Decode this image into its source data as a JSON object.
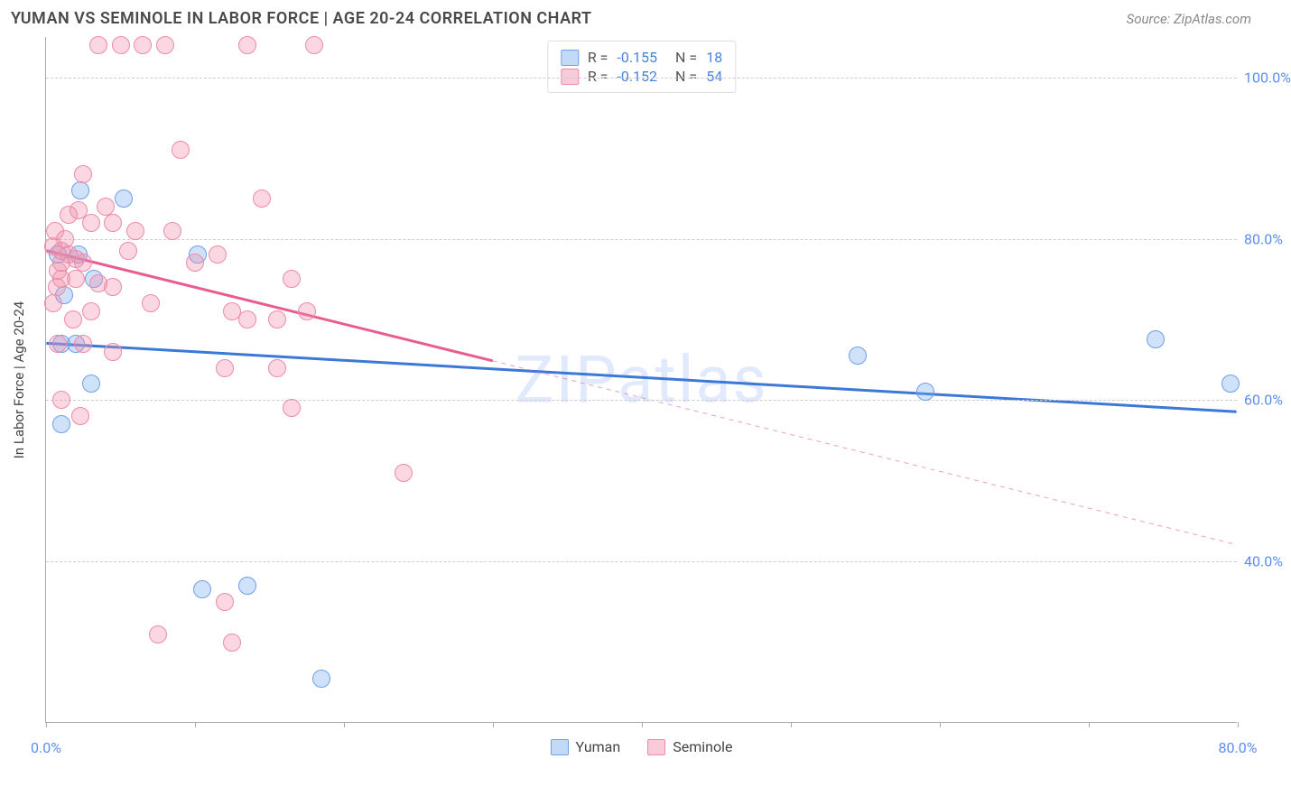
{
  "header": {
    "title": "YUMAN VS SEMINOLE IN LABOR FORCE | AGE 20-24 CORRELATION CHART",
    "source": "Source: ZipAtlas.com"
  },
  "watermark": "ZIPatlas",
  "chart": {
    "type": "scatter",
    "yaxis_label": "In Labor Force | Age 20-24",
    "xlim": [
      0,
      80
    ],
    "ylim": [
      20,
      105
    ],
    "y_gridlines": [
      40,
      60,
      80,
      100
    ],
    "y_tick_labels": [
      "40.0%",
      "60.0%",
      "80.0%",
      "100.0%"
    ],
    "x_ticks": [
      0,
      10,
      20,
      30,
      40,
      50,
      60,
      70,
      80
    ],
    "x_tick_label_positions": [
      0,
      80
    ],
    "x_tick_labels": [
      "0.0%",
      "80.0%"
    ],
    "grid_color": "#cccccc",
    "axis_color": "#aaaaaa",
    "tick_label_color": "#5b8def",
    "background_color": "#ffffff",
    "marker_radius": 10,
    "marker_border_width": 1.5,
    "series": [
      {
        "name": "Yuman",
        "fill": "rgba(120,170,240,0.35)",
        "stroke": "#6fa0e8",
        "trend": {
          "color": "#3b78d8",
          "width": 3,
          "x1": 0,
          "y1": 67,
          "x2": 80,
          "y2": 58.5,
          "solid_to_x": 80
        },
        "points": [
          {
            "x": 2.3,
            "y": 86
          },
          {
            "x": 5.2,
            "y": 85
          },
          {
            "x": 10.2,
            "y": 78
          },
          {
            "x": 3.2,
            "y": 75
          },
          {
            "x": 1.0,
            "y": 67
          },
          {
            "x": 2.0,
            "y": 67
          },
          {
            "x": 3.0,
            "y": 62
          },
          {
            "x": 1.0,
            "y": 57
          },
          {
            "x": 10.5,
            "y": 36.5
          },
          {
            "x": 13.5,
            "y": 37
          },
          {
            "x": 18.5,
            "y": 25.5
          },
          {
            "x": 54.5,
            "y": 65.5
          },
          {
            "x": 59.0,
            "y": 61
          },
          {
            "x": 74.5,
            "y": 67.5
          },
          {
            "x": 79.5,
            "y": 62
          },
          {
            "x": 0.8,
            "y": 78
          },
          {
            "x": 2.2,
            "y": 78
          },
          {
            "x": 1.2,
            "y": 73
          }
        ]
      },
      {
        "name": "Seminole",
        "fill": "rgba(240,140,170,0.35)",
        "stroke": "#ec8bab",
        "trend": {
          "color": "#e85d8f",
          "width": 3,
          "x1": 0,
          "y1": 78.5,
          "x2": 80,
          "y2": 42,
          "solid_to_x": 30
        },
        "points": [
          {
            "x": 3.5,
            "y": 104
          },
          {
            "x": 5.0,
            "y": 104
          },
          {
            "x": 6.5,
            "y": 104
          },
          {
            "x": 8.0,
            "y": 104
          },
          {
            "x": 13.5,
            "y": 104
          },
          {
            "x": 18.0,
            "y": 104
          },
          {
            "x": 9.0,
            "y": 91
          },
          {
            "x": 2.5,
            "y": 88
          },
          {
            "x": 14.5,
            "y": 85
          },
          {
            "x": 4.0,
            "y": 84
          },
          {
            "x": 3.0,
            "y": 82
          },
          {
            "x": 4.5,
            "y": 82
          },
          {
            "x": 6.0,
            "y": 81
          },
          {
            "x": 8.5,
            "y": 81
          },
          {
            "x": 0.5,
            "y": 79
          },
          {
            "x": 1.0,
            "y": 78.5
          },
          {
            "x": 1.5,
            "y": 78
          },
          {
            "x": 1.0,
            "y": 77
          },
          {
            "x": 2.0,
            "y": 77.5
          },
          {
            "x": 2.5,
            "y": 77
          },
          {
            "x": 0.8,
            "y": 76
          },
          {
            "x": 10.0,
            "y": 77
          },
          {
            "x": 11.5,
            "y": 78
          },
          {
            "x": 1.0,
            "y": 75
          },
          {
            "x": 2.0,
            "y": 75
          },
          {
            "x": 3.5,
            "y": 74.5
          },
          {
            "x": 4.5,
            "y": 74
          },
          {
            "x": 16.5,
            "y": 75
          },
          {
            "x": 0.5,
            "y": 72
          },
          {
            "x": 7.0,
            "y": 72
          },
          {
            "x": 12.5,
            "y": 71
          },
          {
            "x": 13.5,
            "y": 70
          },
          {
            "x": 15.5,
            "y": 70
          },
          {
            "x": 17.5,
            "y": 71
          },
          {
            "x": 0.8,
            "y": 67
          },
          {
            "x": 2.5,
            "y": 67
          },
          {
            "x": 4.5,
            "y": 66
          },
          {
            "x": 12.0,
            "y": 64
          },
          {
            "x": 15.5,
            "y": 64
          },
          {
            "x": 1.0,
            "y": 60
          },
          {
            "x": 2.3,
            "y": 58
          },
          {
            "x": 16.5,
            "y": 59
          },
          {
            "x": 24.0,
            "y": 51
          },
          {
            "x": 12.0,
            "y": 35
          },
          {
            "x": 7.5,
            "y": 31
          },
          {
            "x": 12.5,
            "y": 30
          },
          {
            "x": 1.5,
            "y": 83
          },
          {
            "x": 2.2,
            "y": 83.5
          },
          {
            "x": 0.6,
            "y": 81
          },
          {
            "x": 1.3,
            "y": 80
          },
          {
            "x": 5.5,
            "y": 78.5
          },
          {
            "x": 3.0,
            "y": 71
          },
          {
            "x": 1.8,
            "y": 70
          },
          {
            "x": 0.7,
            "y": 74
          }
        ]
      }
    ]
  },
  "stats_box": {
    "rows": [
      {
        "swatch_fill": "rgba(120,170,240,0.45)",
        "swatch_stroke": "#6fa0e8",
        "r_label": "R = ",
        "r_value": "-0.155",
        "n_label": "N = ",
        "n_value": "18"
      },
      {
        "swatch_fill": "rgba(240,140,170,0.45)",
        "swatch_stroke": "#ec8bab",
        "r_label": "R = ",
        "r_value": "-0.152",
        "n_label": "N = ",
        "n_value": "54"
      }
    ]
  },
  "bottom_legend": {
    "items": [
      {
        "swatch_fill": "rgba(120,170,240,0.45)",
        "swatch_stroke": "#6fa0e8",
        "label": "Yuman"
      },
      {
        "swatch_fill": "rgba(240,140,170,0.45)",
        "swatch_stroke": "#ec8bab",
        "label": "Seminole"
      }
    ]
  }
}
